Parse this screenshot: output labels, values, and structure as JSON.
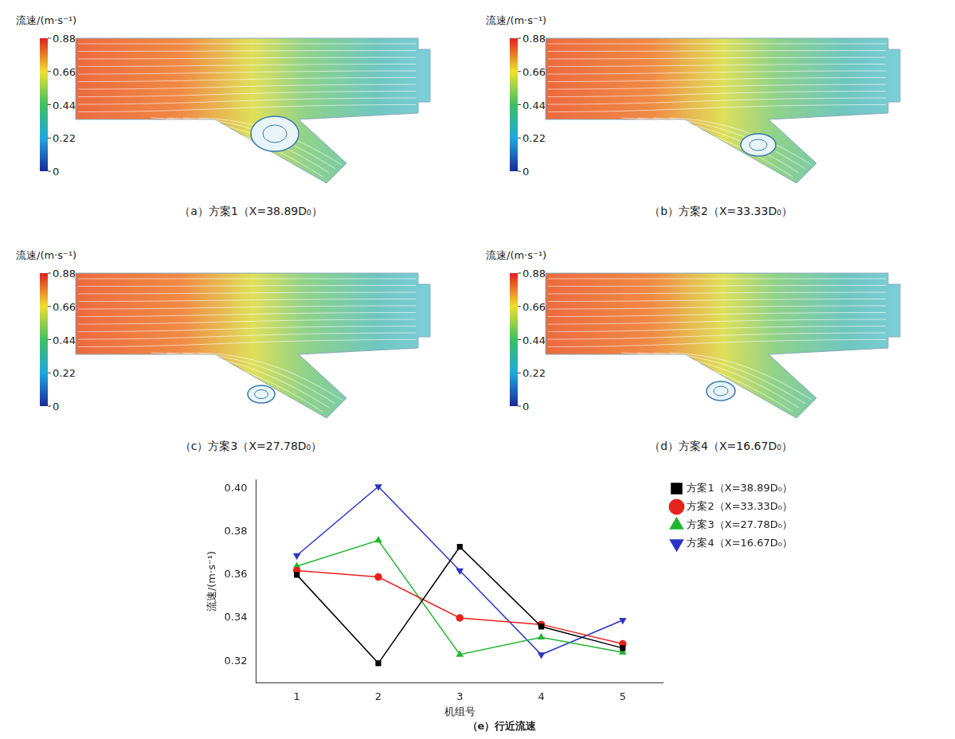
{
  "panels": [
    {
      "caption": "（a）方案1（X=38.89D₀）",
      "colorbar": {
        "label": "流速/(m·s⁻¹)",
        "range": [
          0,
          0.88
        ],
        "ticks": [
          0,
          0.22,
          0.44,
          0.66,
          0.88
        ]
      }
    },
    {
      "caption": "（b）方案2（X=33.33D₀）",
      "colorbar": {
        "label": "流速/(m·s⁻¹)",
        "range": [
          0,
          0.88
        ],
        "ticks": [
          0,
          0.22,
          0.44,
          0.66,
          0.88
        ]
      }
    },
    {
      "caption": "（c）方案3（X=27.78D₀）",
      "colorbar": {
        "label": "流速/(m·s⁻¹)",
        "range": [
          0,
          0.88
        ],
        "ticks": [
          0,
          0.22,
          0.44,
          0.66,
          0.88
        ]
      }
    },
    {
      "caption": "（d）方案4（X=16.67D₀）",
      "colorbar": {
        "label": "流速/(m·s⁻¹)",
        "range": [
          0,
          0.88
        ],
        "ticks": [
          0,
          0.22,
          0.44,
          0.66,
          0.88
        ]
      }
    }
  ],
  "chart_data": {
    "type": "line",
    "title": "（e）行近流速",
    "x_label": "机组号",
    "y_label": "流速/(m·s⁻¹)",
    "categories": [
      "1",
      "2",
      "3",
      "4",
      "5"
    ],
    "series": [
      {
        "name": "方案1（X=38.89D₀）",
        "color": "#000000",
        "marker": "square",
        "values": [
          0.36,
          0.319,
          0.373,
          0.336,
          0.326
        ]
      },
      {
        "name": "方案2（X=33.33D₀）",
        "color": "#e8221c",
        "marker": "circle",
        "values": [
          0.362,
          0.359,
          0.34,
          0.337,
          0.328
        ]
      },
      {
        "name": "方案3（X=27.78D₀）",
        "color": "#22b530",
        "marker": "triangle",
        "values": [
          0.364,
          0.376,
          0.323,
          0.331,
          0.324
        ]
      },
      {
        "name": "方案4（X=16.67D₀）",
        "color": "#2a35c8",
        "marker": "triangle_down",
        "values": [
          0.369,
          0.401,
          0.362,
          0.323,
          0.339
        ]
      }
    ],
    "ylim": [
      0.31,
      0.404
    ],
    "yticks": [
      0.32,
      0.34,
      0.36,
      0.38,
      {
        "value": 0.4,
        "label": "0.40"
      }
    ],
    "grid": false,
    "legend": "right"
  }
}
